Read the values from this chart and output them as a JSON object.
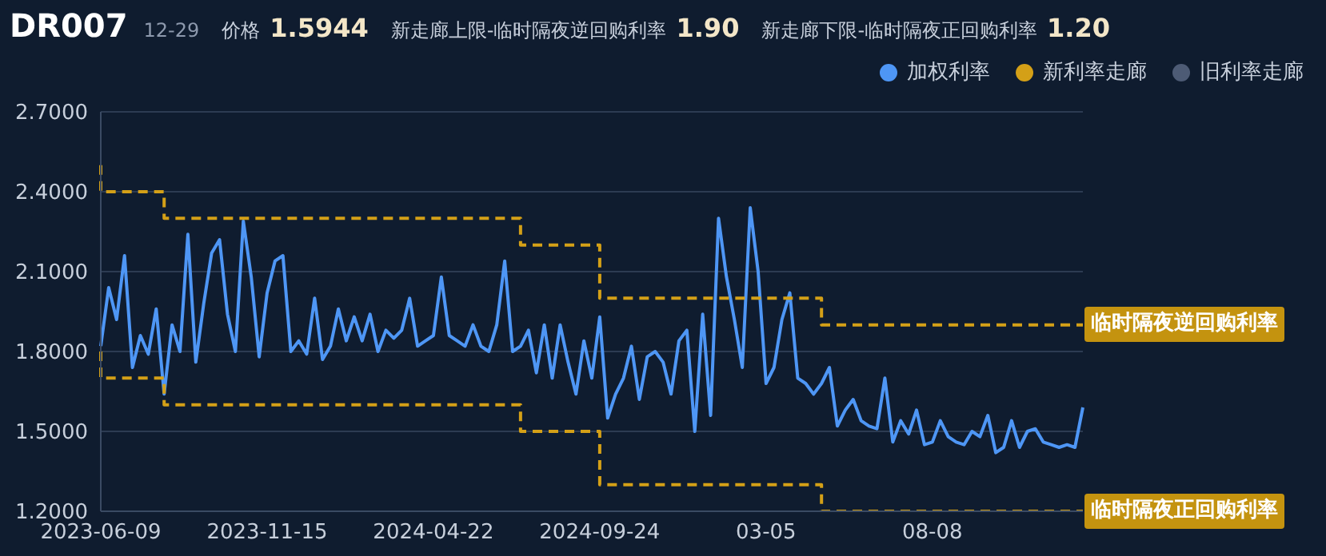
{
  "chart_data": {
    "type": "line",
    "title": "DR007",
    "annotations": [
      "12-29",
      "价格",
      "1.5944",
      "新走廊上限-临时隔夜逆回购利率",
      "1.90",
      "新走廊下限-临时隔夜正回购利率",
      "1.20",
      "临时隔夜逆回购利率",
      "临时隔夜正回购利率"
    ],
    "categories": [
      "2023-06-09",
      null,
      null,
      null,
      null,
      null,
      null,
      null,
      null,
      null,
      null,
      null,
      null,
      null,
      null,
      null,
      null,
      null,
      null,
      null,
      null,
      "2023-11-15",
      null,
      null,
      null,
      null,
      null,
      null,
      null,
      null,
      null,
      null,
      null,
      null,
      null,
      null,
      null,
      null,
      null,
      null,
      null,
      null,
      "2024-04-22",
      null,
      null,
      null,
      null,
      null,
      null,
      null,
      null,
      null,
      null,
      null,
      null,
      null,
      null,
      null,
      null,
      null,
      null,
      null,
      null,
      "2024-09-24",
      null,
      null,
      null,
      null,
      null,
      null,
      null,
      null,
      null,
      null,
      null,
      null,
      null,
      null,
      null,
      null,
      null,
      null,
      null,
      null,
      "03-05",
      null,
      null,
      null,
      null,
      null,
      null,
      null,
      null,
      null,
      null,
      null,
      null,
      null,
      null,
      null,
      null,
      null,
      null,
      null,
      null,
      "08-08",
      null,
      null,
      null,
      null,
      null,
      null,
      null,
      null,
      null,
      null,
      null,
      null,
      null,
      null,
      null,
      null,
      null,
      null,
      null
    ],
    "ylim": [
      1.2,
      2.7
    ],
    "yticks": [
      {
        "value": 1.2,
        "label": "1.2000"
      },
      {
        "value": 1.5,
        "label": "1.5000"
      },
      {
        "value": 1.8,
        "label": "1.8000"
      },
      {
        "value": 2.1,
        "label": "2.1000"
      },
      {
        "value": 2.4,
        "label": "2.4000"
      },
      {
        "value": 2.7,
        "label": "2.7000"
      }
    ],
    "grid": "y",
    "legend": "top right",
    "marker": "none",
    "series": [
      {
        "name": "加权利率",
        "color": "#4e96f5",
        "values": [
          1.82,
          2.04,
          1.92,
          2.16,
          1.74,
          1.86,
          1.79,
          1.96,
          1.64,
          1.9,
          1.8,
          2.24,
          1.76,
          1.98,
          2.17,
          2.22,
          1.94,
          1.8,
          2.29,
          2.08,
          1.78,
          2.02,
          2.14,
          2.16,
          1.8,
          1.84,
          1.79,
          2.0,
          1.77,
          1.82,
          1.96,
          1.84,
          1.93,
          1.84,
          1.94,
          1.8,
          1.88,
          1.85,
          1.88,
          2.0,
          1.82,
          1.84,
          1.86,
          2.08,
          1.86,
          1.84,
          1.82,
          1.9,
          1.82,
          1.8,
          1.9,
          2.14,
          1.8,
          1.82,
          1.88,
          1.72,
          1.9,
          1.7,
          1.9,
          1.76,
          1.64,
          1.84,
          1.7,
          1.93,
          1.55,
          1.64,
          1.7,
          1.82,
          1.62,
          1.78,
          1.8,
          1.76,
          1.64,
          1.84,
          1.88,
          1.5,
          1.94,
          1.56,
          2.3,
          2.08,
          1.92,
          1.74,
          2.34,
          2.1,
          1.68,
          1.74,
          1.92,
          2.02,
          1.7,
          1.68,
          1.64,
          1.68,
          1.74,
          1.52,
          1.58,
          1.62,
          1.54,
          1.52,
          1.51,
          1.7,
          1.46,
          1.54,
          1.49,
          1.58,
          1.45,
          1.46,
          1.54,
          1.48,
          1.46,
          1.45,
          1.5,
          1.48,
          1.56,
          1.42,
          1.44,
          1.54,
          1.44,
          1.5,
          1.51,
          1.46,
          1.45,
          1.44,
          1.45,
          1.44,
          1.59
        ]
      },
      {
        "name": "新利率走廊",
        "type": "step",
        "line_style": "dashed",
        "color": "#d4a017",
        "values": [
          2.5,
          2.4,
          2.4,
          2.4,
          2.4,
          2.4,
          2.4,
          2.4,
          2.4,
          2.3,
          2.3,
          2.3,
          2.3,
          2.3,
          2.3,
          2.3,
          2.3,
          2.3,
          2.3,
          2.3,
          2.3,
          2.3,
          2.3,
          2.3,
          2.3,
          2.3,
          2.3,
          2.3,
          2.3,
          2.3,
          2.3,
          2.3,
          2.3,
          2.3,
          2.3,
          2.3,
          2.3,
          2.3,
          2.3,
          2.3,
          2.3,
          2.3,
          2.3,
          2.3,
          2.3,
          2.3,
          2.3,
          2.3,
          2.3,
          2.3,
          2.3,
          2.3,
          2.3,
          2.3,
          2.2,
          2.2,
          2.2,
          2.2,
          2.2,
          2.2,
          2.2,
          2.2,
          2.2,
          2.2,
          2.0,
          2.0,
          2.0,
          2.0,
          2.0,
          2.0,
          2.0,
          2.0,
          2.0,
          2.0,
          2.0,
          2.0,
          2.0,
          2.0,
          2.0,
          2.0,
          2.0,
          2.0,
          2.0,
          2.0,
          2.0,
          2.0,
          2.0,
          2.0,
          2.0,
          2.0,
          2.0,
          2.0,
          1.9,
          1.9,
          1.9,
          1.9,
          1.9,
          1.9,
          1.9,
          1.9,
          1.9,
          1.9,
          1.9,
          1.9,
          1.9,
          1.9,
          1.9,
          1.9,
          1.9,
          1.9,
          1.9,
          1.9,
          1.9,
          1.9,
          1.9,
          1.9,
          1.9,
          1.9,
          1.9,
          1.9,
          1.9,
          1.9,
          1.9,
          1.9,
          1.9
        ]
      },
      {
        "type": "step",
        "line_style": "dashed",
        "color": "#d4a017",
        "values": [
          1.8,
          1.7,
          1.7,
          1.7,
          1.7,
          1.7,
          1.7,
          1.7,
          1.7,
          1.6,
          1.6,
          1.6,
          1.6,
          1.6,
          1.6,
          1.6,
          1.6,
          1.6,
          1.6,
          1.6,
          1.6,
          1.6,
          1.6,
          1.6,
          1.6,
          1.6,
          1.6,
          1.6,
          1.6,
          1.6,
          1.6,
          1.6,
          1.6,
          1.6,
          1.6,
          1.6,
          1.6,
          1.6,
          1.6,
          1.6,
          1.6,
          1.6,
          1.6,
          1.6,
          1.6,
          1.6,
          1.6,
          1.6,
          1.6,
          1.6,
          1.6,
          1.6,
          1.6,
          1.6,
          1.5,
          1.5,
          1.5,
          1.5,
          1.5,
          1.5,
          1.5,
          1.5,
          1.5,
          1.5,
          1.3,
          1.3,
          1.3,
          1.3,
          1.3,
          1.3,
          1.3,
          1.3,
          1.3,
          1.3,
          1.3,
          1.3,
          1.3,
          1.3,
          1.3,
          1.3,
          1.3,
          1.3,
          1.3,
          1.3,
          1.3,
          1.3,
          1.3,
          1.3,
          1.3,
          1.3,
          1.3,
          1.3,
          1.2,
          1.2,
          1.2,
          1.2,
          1.2,
          1.2,
          1.2,
          1.2,
          1.2,
          1.2,
          1.2,
          1.2,
          1.2,
          1.2,
          1.2,
          1.2,
          1.2,
          1.2,
          1.2,
          1.2,
          1.2,
          1.2,
          1.2,
          1.2,
          1.2,
          1.2,
          1.2,
          1.2,
          1.2,
          1.2,
          1.2,
          1.2,
          1.2
        ]
      },
      {
        "name": "旧利率走廊",
        "color": "#4d5b75",
        "values": [
          null,
          null,
          null,
          null,
          null,
          null,
          null,
          null,
          null,
          null,
          null,
          null,
          null,
          null,
          null,
          null,
          null,
          null,
          null,
          null,
          null,
          null,
          null,
          null,
          null,
          null,
          null,
          null,
          null,
          null,
          null,
          null,
          null,
          null,
          null,
          null,
          null,
          null,
          null,
          null,
          null,
          null,
          null,
          null,
          null,
          null,
          null,
          null,
          null,
          null,
          null,
          null,
          null,
          null,
          null,
          null,
          null,
          null,
          null,
          null,
          null,
          null,
          null,
          null,
          null,
          null,
          null,
          null,
          null,
          null,
          null,
          null,
          null,
          null,
          null,
          null,
          null,
          null,
          null,
          null,
          null,
          null,
          null,
          null,
          null,
          null,
          null,
          null,
          null,
          null,
          null,
          null,
          null,
          null,
          null,
          null,
          null,
          null,
          null,
          null,
          null,
          null,
          null,
          null,
          null,
          null,
          null,
          null,
          null,
          null,
          null,
          null,
          null,
          null,
          null,
          null,
          null,
          null,
          null,
          null,
          null,
          null,
          null,
          null,
          null
        ]
      }
    ]
  }
}
